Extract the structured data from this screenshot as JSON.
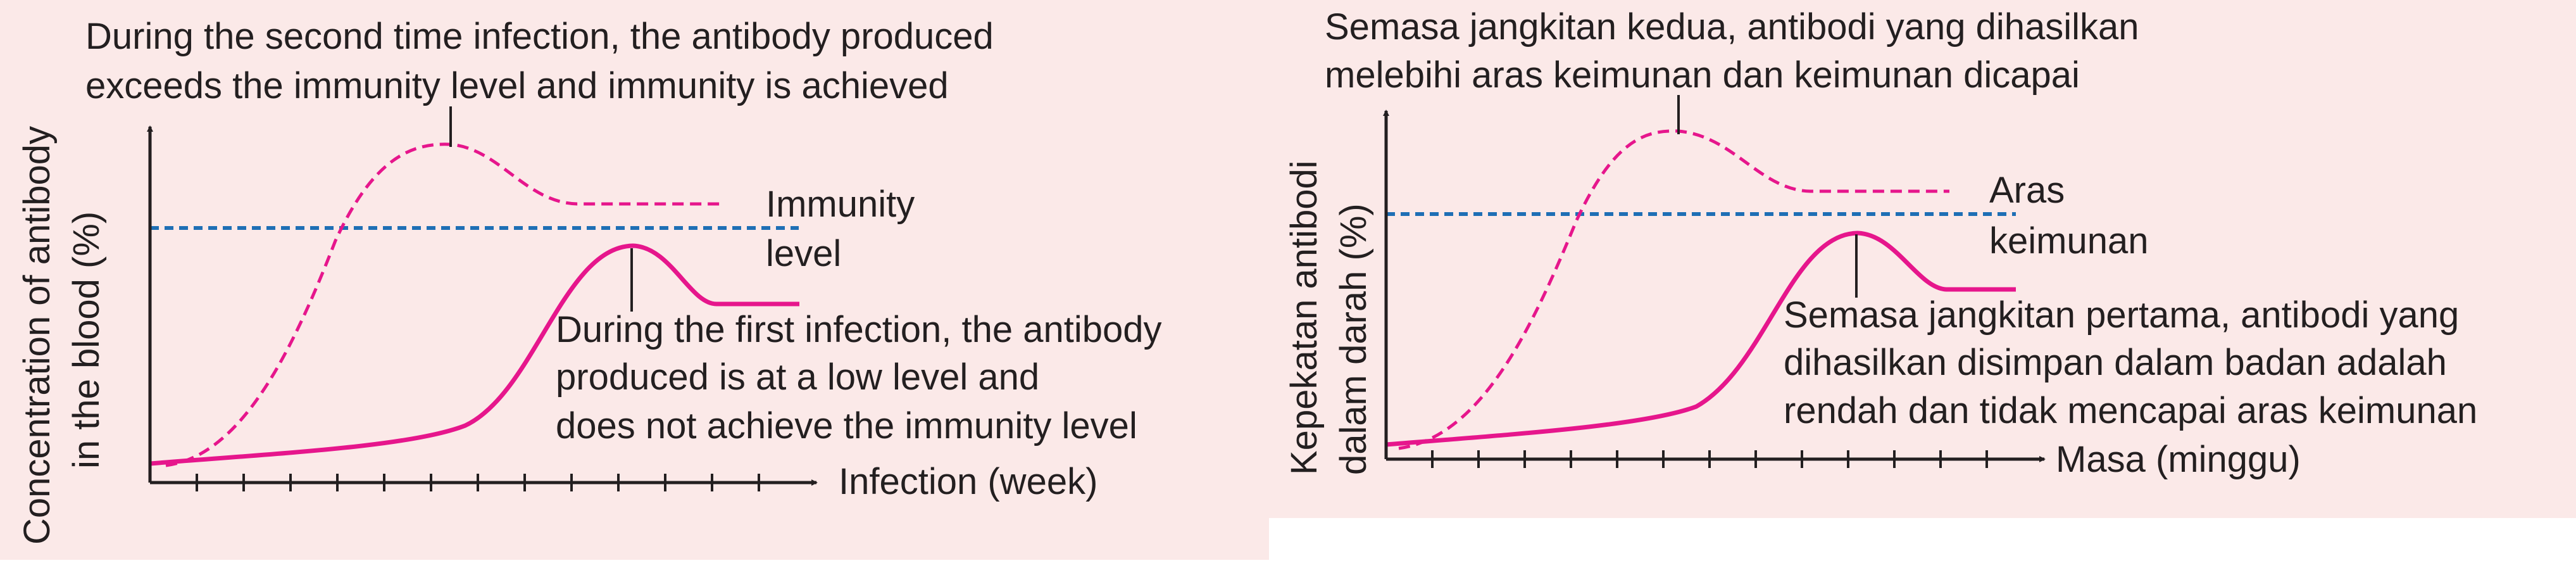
{
  "colors": {
    "panel_background": "#fbe9e8",
    "first_infection_curve": "#e6168c",
    "second_infection_curve": "#e6168c",
    "immunity_line": "#1e6fb5",
    "axes": "#231f20"
  },
  "panels": [
    {
      "language": "English",
      "annotation_second": [
        "During the second time infection, the antibody produced",
        "exceeds the immunity level and immunity is achieved"
      ],
      "immunity_label": [
        "Immunity",
        "level"
      ],
      "annotation_first": [
        "During the first infection, the antibody",
        "produced is at a low level and",
        "does not achieve the immunity level"
      ],
      "x_axis_label": "Infection (week)",
      "y_axis_label": [
        "Concentration of antibody",
        "in the blood (%)"
      ]
    },
    {
      "language": "Malay",
      "annotation_second": [
        "Semasa jangkitan kedua, antibodi yang dihasilkan",
        "melebihi aras keimunan dan keimunan dicapai"
      ],
      "immunity_label": [
        "Aras",
        "keimunan"
      ],
      "annotation_first": [
        "Semasa jangkitan pertama, antibodi yang",
        "dihasilkan disimpan dalam badan adalah",
        "rendah dan tidak mencapai aras keimunan"
      ],
      "x_axis_label": "Masa (minggu)",
      "y_axis_label": [
        "Kepekatan antibodi",
        "dalam darah (%)"
      ]
    }
  ]
}
